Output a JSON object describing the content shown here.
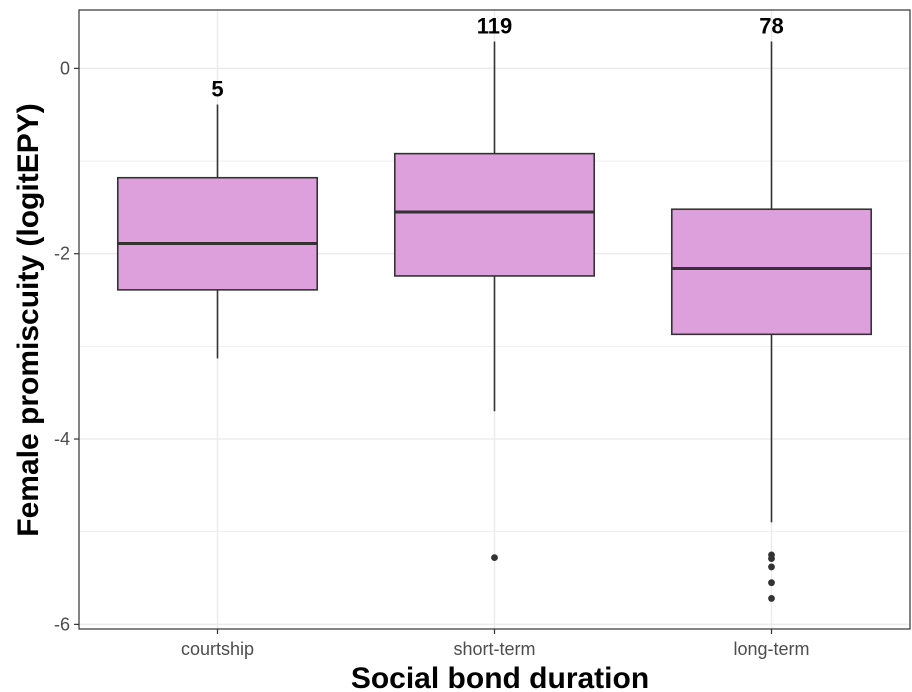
{
  "chart_data": {
    "type": "box",
    "title": "",
    "xlabel": "Social bond duration",
    "ylabel": "Female promiscuity (logitEPY)",
    "categories": [
      "courtship",
      "short-term",
      "long-term"
    ],
    "boxes": [
      {
        "category": "courtship",
        "count_label": "5",
        "whisker_low": -3.13,
        "q1": -2.39,
        "median": -1.89,
        "q3": -1.18,
        "whisker_high": -0.39,
        "outliers": []
      },
      {
        "category": "short-term",
        "count_label": "119",
        "whisker_low": -3.7,
        "q1": -2.24,
        "median": -1.55,
        "q3": -0.92,
        "whisker_high": 0.29,
        "outliers": [
          -5.28
        ]
      },
      {
        "category": "long-term",
        "count_label": "78",
        "whisker_low": -4.9,
        "q1": -2.87,
        "median": -2.16,
        "q3": -1.52,
        "whisker_high": 0.29,
        "outliers": [
          -5.25,
          -5.29,
          -5.38,
          -5.55,
          -5.72
        ]
      }
    ],
    "ylim": [
      -6.05,
      0.63
    ],
    "yticks": [
      0,
      -2,
      -4,
      -6
    ],
    "ytick_labels": [
      "0",
      "-2",
      "-4",
      "-6"
    ],
    "grid": true,
    "colors": {
      "box_fill": "#dda0dd",
      "box_stroke": "#333333",
      "grid": "#ebebeb",
      "panel_border": "#333333",
      "outlier": "#333333"
    }
  }
}
